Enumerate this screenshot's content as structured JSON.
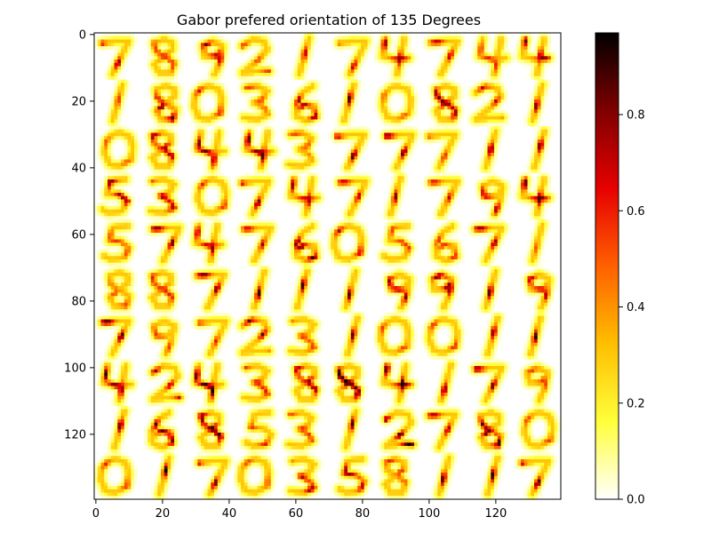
{
  "chart_data": {
    "type": "heatmap",
    "title": "Gabor prefered orientation of 135 Degrees",
    "xlabel": "",
    "ylabel": "",
    "image_size": [
      140,
      140
    ],
    "tile_grid": [
      10,
      10
    ],
    "tile_size": 14,
    "xlim": [
      0,
      140
    ],
    "ylim": [
      140,
      0
    ],
    "x_ticks": [
      0,
      20,
      40,
      60,
      80,
      100,
      120
    ],
    "x_tick_labels": [
      "0",
      "20",
      "40",
      "60",
      "80",
      "100",
      "120"
    ],
    "y_ticks": [
      0,
      20,
      40,
      60,
      80,
      100,
      120
    ],
    "y_tick_labels": [
      "0",
      "20",
      "40",
      "60",
      "80",
      "100",
      "120"
    ],
    "colormap": "hot_r",
    "colors": [
      "#ffffff",
      "#ffff3a",
      "#ffbf00",
      "#ff6000",
      "#e60000",
      "#800000",
      "#000000"
    ],
    "colorbar": {
      "range": [
        0.0,
        0.97
      ],
      "ticks": [
        0.0,
        0.2,
        0.4,
        0.6,
        0.8
      ],
      "tick_labels": [
        "0.0",
        "0.2",
        "0.4",
        "0.6",
        "0.8"
      ]
    },
    "digits": [
      [
        "7",
        "8",
        "9",
        "2",
        "1",
        "7",
        "4",
        "7",
        "4",
        "4"
      ],
      [
        "1",
        "8",
        "0",
        "3",
        "6",
        "1",
        "0",
        "8",
        "2",
        "1"
      ],
      [
        "0",
        "8",
        "4",
        "4",
        "3",
        "7",
        "7",
        "7",
        "1",
        "1"
      ],
      [
        "5",
        "3",
        "0",
        "7",
        "4",
        "7",
        "1",
        "7",
        "9",
        "4"
      ],
      [
        "5",
        "7",
        "4",
        "7",
        "6",
        "0",
        "5",
        "6",
        "7",
        "1"
      ],
      [
        "8",
        "8",
        "7",
        "1",
        "1",
        "1",
        "9",
        "9",
        "1",
        "9"
      ],
      [
        "7",
        "9",
        "7",
        "2",
        "3",
        "1",
        "0",
        "0",
        "1",
        "1"
      ],
      [
        "4",
        "2",
        "4",
        "3",
        "8",
        "8",
        "4",
        "1",
        "7",
        "9"
      ],
      [
        "1",
        "6",
        "8",
        "5",
        "3",
        "1",
        "2",
        "7",
        "8",
        "0"
      ],
      [
        "0",
        "1",
        "7",
        "0",
        "3",
        "5",
        "8",
        "1",
        "1",
        "7"
      ]
    ],
    "peak_values": [
      [
        0.85,
        0.55,
        0.8,
        0.55,
        0.75,
        0.75,
        0.85,
        0.75,
        0.6,
        0.85
      ],
      [
        0.6,
        0.9,
        0.65,
        0.55,
        0.8,
        0.95,
        0.5,
        0.85,
        0.7,
        0.9
      ],
      [
        0.5,
        0.8,
        0.85,
        0.97,
        0.55,
        0.97,
        0.95,
        0.6,
        0.95,
        0.95
      ],
      [
        0.85,
        0.75,
        0.6,
        0.9,
        0.8,
        0.75,
        0.85,
        0.7,
        0.8,
        0.97
      ],
      [
        0.55,
        0.9,
        0.8,
        0.75,
        0.9,
        0.75,
        0.55,
        0.6,
        0.85,
        0.5
      ],
      [
        0.55,
        0.6,
        0.9,
        0.97,
        0.97,
        0.9,
        0.8,
        0.9,
        0.97,
        0.75
      ],
      [
        0.97,
        0.55,
        0.6,
        0.85,
        0.55,
        0.9,
        0.55,
        0.6,
        0.9,
        0.97
      ],
      [
        0.9,
        0.75,
        0.97,
        0.6,
        0.8,
        0.97,
        0.97,
        0.9,
        0.9,
        0.55
      ],
      [
        0.97,
        0.85,
        0.9,
        0.6,
        0.55,
        0.9,
        0.95,
        0.8,
        0.97,
        0.55
      ],
      [
        0.6,
        0.97,
        0.9,
        0.55,
        0.85,
        0.75,
        0.6,
        0.97,
        0.97,
        0.97
      ]
    ]
  }
}
